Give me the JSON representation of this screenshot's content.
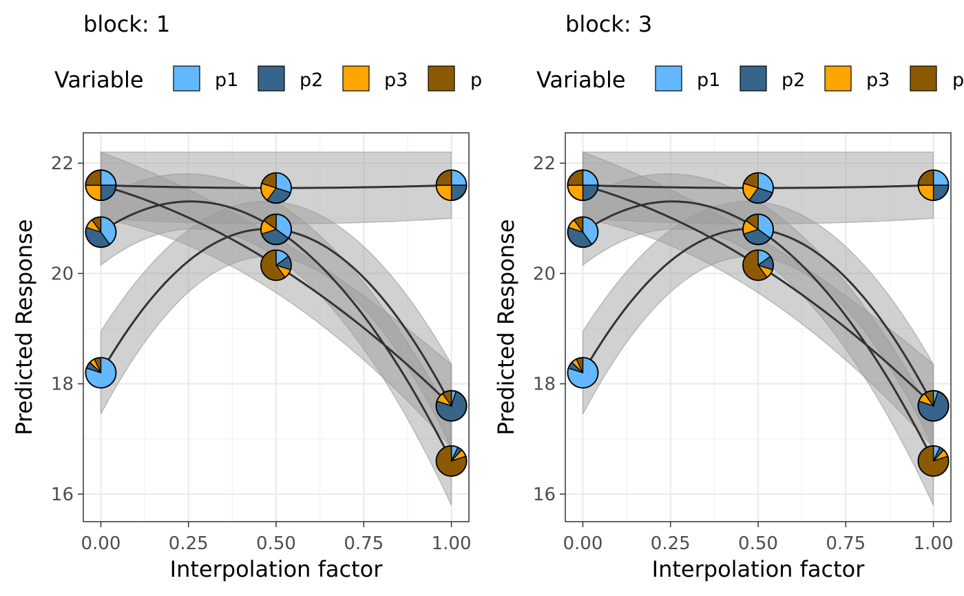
{
  "legend": {
    "title": "Variable",
    "entries": [
      {
        "label": "p1",
        "color": "#63B8FF"
      },
      {
        "label": "p2",
        "color": "#36648B"
      },
      {
        "label": "p3",
        "color": "#FFA500"
      },
      {
        "label": "p",
        "color": "#8B5A00"
      }
    ]
  },
  "chart_data": [
    {
      "type": "line",
      "title": "block: 1",
      "xlabel": "Interpolation factor",
      "ylabel": "Predicted Response",
      "xlim": [
        -0.05,
        1.05
      ],
      "ylim": [
        15.5,
        22.55
      ],
      "x_ticks": [
        "0.00",
        "0.25",
        "0.50",
        "0.75",
        "1.00"
      ],
      "y_ticks": [
        "16",
        "18",
        "20",
        "22"
      ],
      "grid": true,
      "legend_position": "top",
      "series": [
        {
          "x": [
            0.0,
            0.5,
            1.0
          ],
          "y": [
            21.6,
            21.55,
            21.6
          ],
          "band": {
            "lower": [
              21.0,
              20.9,
              21.0
            ],
            "upper": [
              22.2,
              22.2,
              22.2
            ]
          },
          "pies": [
            [
              0.25,
              0.25,
              0.25,
              0.25
            ],
            [
              0.3,
              0.3,
              0.2,
              0.2
            ],
            [
              0.25,
              0.25,
              0.25,
              0.25
            ]
          ]
        },
        {
          "x": [
            0.0,
            0.5,
            1.0
          ],
          "y": [
            20.75,
            20.8,
            16.6
          ],
          "band": {
            "lower": [
              20.15,
              20.3,
              15.8
            ],
            "upper": [
              21.35,
              21.3,
              17.4
            ]
          },
          "pies": [
            [
              0.4,
              0.4,
              0.1,
              0.1
            ],
            [
              0.35,
              0.35,
              0.15,
              0.15
            ],
            [
              0.07,
              0.05,
              0.08,
              0.8
            ]
          ]
        },
        {
          "x": [
            0.0,
            0.5,
            1.0
          ],
          "y": [
            21.6,
            20.15,
            17.6
          ],
          "band": {
            "lower": [
              21.0,
              19.65,
              16.85
            ],
            "upper": [
              22.2,
              20.65,
              18.35
            ]
          },
          "pies": [
            [
              0.25,
              0.25,
              0.25,
              0.25
            ],
            [
              0.15,
              0.15,
              0.1,
              0.6
            ],
            [
              0.05,
              0.75,
              0.1,
              0.1
            ]
          ]
        },
        {
          "x": [
            0.0,
            0.5,
            1.0
          ],
          "y": [
            18.2,
            20.8,
            17.6
          ],
          "band": {
            "lower": [
              17.45,
              20.3,
              16.85
            ],
            "upper": [
              18.95,
              21.3,
              18.35
            ]
          },
          "pies": [
            [
              0.8,
              0.07,
              0.06,
              0.07
            ],
            [
              0.35,
              0.35,
              0.15,
              0.15
            ],
            [
              0.05,
              0.75,
              0.1,
              0.1
            ]
          ]
        }
      ]
    },
    {
      "type": "line",
      "title": "block: 3",
      "xlabel": "Interpolation factor",
      "ylabel": "Predicted Response",
      "xlim": [
        -0.05,
        1.05
      ],
      "ylim": [
        15.5,
        22.55
      ],
      "x_ticks": [
        "0.00",
        "0.25",
        "0.50",
        "0.75",
        "1.00"
      ],
      "y_ticks": [
        "16",
        "18",
        "20",
        "22"
      ],
      "grid": true,
      "legend_position": "top",
      "series": [
        {
          "x": [
            0.0,
            0.5,
            1.0
          ],
          "y": [
            21.6,
            21.55,
            21.6
          ],
          "band": {
            "lower": [
              21.0,
              20.9,
              21.0
            ],
            "upper": [
              22.2,
              22.2,
              22.2
            ]
          },
          "pies": [
            [
              0.25,
              0.25,
              0.25,
              0.25
            ],
            [
              0.3,
              0.3,
              0.2,
              0.2
            ],
            [
              0.25,
              0.25,
              0.25,
              0.25
            ]
          ]
        },
        {
          "x": [
            0.0,
            0.5,
            1.0
          ],
          "y": [
            20.75,
            20.8,
            16.6
          ],
          "band": {
            "lower": [
              20.15,
              20.3,
              15.8
            ],
            "upper": [
              21.35,
              21.3,
              17.4
            ]
          },
          "pies": [
            [
              0.4,
              0.4,
              0.1,
              0.1
            ],
            [
              0.35,
              0.35,
              0.15,
              0.15
            ],
            [
              0.07,
              0.05,
              0.08,
              0.8
            ]
          ]
        },
        {
          "x": [
            0.0,
            0.5,
            1.0
          ],
          "y": [
            21.6,
            20.15,
            17.6
          ],
          "band": {
            "lower": [
              21.0,
              19.65,
              16.85
            ],
            "upper": [
              22.2,
              20.65,
              18.35
            ]
          },
          "pies": [
            [
              0.25,
              0.25,
              0.25,
              0.25
            ],
            [
              0.15,
              0.15,
              0.1,
              0.6
            ],
            [
              0.05,
              0.75,
              0.1,
              0.1
            ]
          ]
        },
        {
          "x": [
            0.0,
            0.5,
            1.0
          ],
          "y": [
            18.2,
            20.8,
            17.6
          ],
          "band": {
            "lower": [
              17.45,
              20.3,
              16.85
            ],
            "upper": [
              18.95,
              21.3,
              18.35
            ]
          },
          "pies": [
            [
              0.8,
              0.07,
              0.06,
              0.07
            ],
            [
              0.35,
              0.35,
              0.15,
              0.15
            ],
            [
              0.05,
              0.75,
              0.1,
              0.1
            ]
          ]
        }
      ]
    }
  ]
}
